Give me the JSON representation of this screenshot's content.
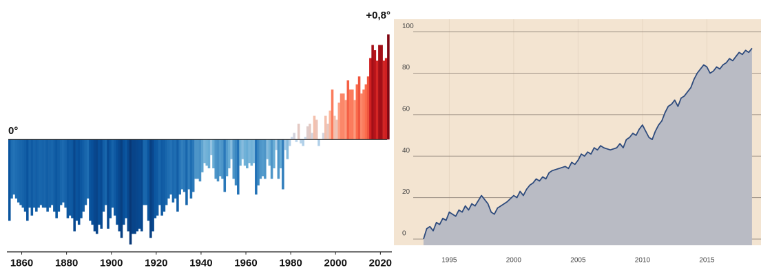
{
  "chart_data": [
    {
      "type": "bar",
      "x": [
        1854,
        1855,
        1856,
        1857,
        1858,
        1859,
        1860,
        1861,
        1862,
        1863,
        1864,
        1865,
        1866,
        1867,
        1868,
        1869,
        1870,
        1871,
        1872,
        1873,
        1874,
        1875,
        1876,
        1877,
        1878,
        1879,
        1880,
        1881,
        1882,
        1883,
        1884,
        1885,
        1886,
        1887,
        1888,
        1889,
        1890,
        1891,
        1892,
        1893,
        1894,
        1895,
        1896,
        1897,
        1898,
        1899,
        1900,
        1901,
        1902,
        1903,
        1904,
        1905,
        1906,
        1907,
        1908,
        1909,
        1910,
        1911,
        1912,
        1913,
        1914,
        1915,
        1916,
        1917,
        1918,
        1919,
        1920,
        1921,
        1922,
        1923,
        1924,
        1925,
        1926,
        1927,
        1928,
        1929,
        1930,
        1931,
        1932,
        1933,
        1934,
        1935,
        1936,
        1937,
        1938,
        1939,
        1940,
        1941,
        1942,
        1943,
        1944,
        1945,
        1946,
        1947,
        1948,
        1949,
        1950,
        1951,
        1952,
        1953,
        1954,
        1955,
        1956,
        1957,
        1958,
        1959,
        1960,
        1961,
        1962,
        1963,
        1964,
        1965,
        1966,
        1967,
        1968,
        1969,
        1970,
        1971,
        1972,
        1973,
        1974,
        1975,
        1976,
        1977,
        1978,
        1979,
        1980,
        1981,
        1982,
        1983,
        1984,
        1985,
        1986,
        1987,
        1988,
        1989,
        1990,
        1991,
        1992,
        1993,
        1994,
        1995,
        1996,
        1997,
        1998,
        1999,
        2000,
        2001,
        2002,
        2003,
        2004,
        2005,
        2006,
        2007,
        2008,
        2009,
        2010,
        2011,
        2012,
        2013,
        2014,
        2015,
        2016,
        2017,
        2018,
        2019,
        2020,
        2021,
        2022,
        2023
      ],
      "values": [
        -0.62,
        -0.45,
        -0.42,
        -0.45,
        -0.48,
        -0.5,
        -0.52,
        -0.55,
        -0.62,
        -0.52,
        -0.58,
        -0.52,
        -0.55,
        -0.52,
        -0.5,
        -0.52,
        -0.52,
        -0.55,
        -0.52,
        -0.5,
        -0.55,
        -0.6,
        -0.55,
        -0.5,
        -0.48,
        -0.52,
        -0.6,
        -0.58,
        -0.6,
        -0.7,
        -0.62,
        -0.65,
        -0.6,
        -0.55,
        -0.5,
        -0.45,
        -0.62,
        -0.65,
        -0.7,
        -0.72,
        -0.65,
        -0.68,
        -0.55,
        -0.5,
        -0.68,
        -0.6,
        -0.52,
        -0.58,
        -0.65,
        -0.7,
        -0.75,
        -0.65,
        -0.6,
        -0.7,
        -0.8,
        -0.72,
        -0.72,
        -0.7,
        -0.68,
        -0.7,
        -0.5,
        -0.5,
        -0.62,
        -0.75,
        -0.7,
        -0.6,
        -0.58,
        -0.5,
        -0.58,
        -0.55,
        -0.5,
        -0.45,
        -0.42,
        -0.48,
        -0.45,
        -0.55,
        -0.42,
        -0.38,
        -0.4,
        -0.5,
        -0.38,
        -0.45,
        -0.4,
        -0.3,
        -0.3,
        -0.32,
        -0.25,
        -0.18,
        -0.2,
        -0.22,
        -0.12,
        -0.22,
        -0.3,
        -0.32,
        -0.28,
        -0.3,
        -0.4,
        -0.28,
        -0.22,
        -0.15,
        -0.3,
        -0.35,
        -0.42,
        -0.2,
        -0.15,
        -0.2,
        -0.22,
        -0.18,
        -0.2,
        -0.18,
        -0.42,
        -0.35,
        -0.3,
        -0.28,
        -0.3,
        -0.15,
        -0.2,
        -0.3,
        -0.22,
        -0.08,
        -0.3,
        -0.22,
        -0.38,
        -0.08,
        -0.15,
        -0.05,
        0.02,
        0.05,
        -0.02,
        0.12,
        -0.03,
        -0.05,
        0.02,
        0.1,
        0.12,
        0.05,
        0.18,
        0.15,
        -0.05,
        0.0,
        0.05,
        0.18,
        0.12,
        0.22,
        0.38,
        0.18,
        0.15,
        0.28,
        0.35,
        0.35,
        0.3,
        0.45,
        0.38,
        0.38,
        0.3,
        0.42,
        0.48,
        0.35,
        0.38,
        0.42,
        0.48,
        0.62,
        0.72,
        0.68,
        0.6,
        0.72,
        0.72,
        0.6,
        0.62,
        0.8
      ],
      "colors": [
        "#08306b",
        "#08519c",
        "#2171b5",
        "#6baed6",
        "#c6dbef",
        "#fcbba1",
        "#fb6a4a",
        "#cb181d",
        "#67000d"
      ],
      "xlim": [
        1854,
        2024.5
      ],
      "xticks": [
        1860,
        1880,
        1900,
        1920,
        1940,
        1960,
        1980,
        2000,
        2020
      ],
      "ylim": [
        -0.82,
        0.85
      ],
      "yticks": [
        {
          "value": 0,
          "label": "0°"
        },
        {
          "value": 0.8,
          "label": "+0,8°"
        }
      ]
    },
    {
      "type": "area",
      "x": [
        1993.0,
        1993.25,
        1993.5,
        1993.75,
        1994,
        1994.25,
        1994.5,
        1994.75,
        1995,
        1995.25,
        1995.5,
        1995.75,
        1996,
        1996.25,
        1996.5,
        1996.75,
        1997,
        1997.5,
        1997.75,
        1998,
        1998.25,
        1998.5,
        1998.75,
        1999,
        1999.5,
        2000,
        2000.25,
        2000.5,
        2000.75,
        2001,
        2001.25,
        2001.5,
        2001.75,
        2002,
        2002.25,
        2002.5,
        2002.75,
        2003,
        2003.5,
        2004,
        2004.25,
        2004.5,
        2004.75,
        2005,
        2005.25,
        2005.5,
        2005.75,
        2006,
        2006.25,
        2006.5,
        2006.75,
        2007,
        2007.5,
        2008,
        2008.25,
        2008.5,
        2008.75,
        2009,
        2009.25,
        2009.5,
        2009.75,
        2010,
        2010.25,
        2010.5,
        2010.75,
        2011,
        2011.25,
        2011.5,
        2011.75,
        2012,
        2012.25,
        2012.5,
        2012.75,
        2013,
        2013.25,
        2013.5,
        2013.75,
        2014,
        2014.25,
        2014.5,
        2014.75,
        2015,
        2015.25,
        2015.5,
        2015.75,
        2016,
        2016.25,
        2016.5,
        2016.75,
        2017,
        2017.25,
        2017.5,
        2017.75,
        2018,
        2018.25,
        2018.5
      ],
      "values": [
        0,
        5,
        6,
        4,
        8,
        7,
        10,
        9,
        13,
        12,
        11,
        14,
        13,
        16,
        14,
        17,
        16,
        21,
        19,
        17,
        13,
        12,
        15,
        16,
        18,
        21,
        20,
        23,
        21,
        24,
        26,
        27,
        29,
        28,
        30,
        29,
        32,
        33,
        34,
        35,
        34,
        37,
        36,
        38,
        41,
        40,
        42,
        41,
        44,
        43,
        45,
        44,
        43,
        44,
        46,
        44,
        48,
        49,
        51,
        50,
        53,
        55,
        52,
        49,
        48,
        52,
        55,
        57,
        61,
        64,
        65,
        67,
        64,
        68,
        69,
        71,
        73,
        77,
        80,
        82,
        84,
        83,
        80,
        81,
        83,
        82,
        84,
        85,
        87,
        86,
        88,
        90,
        89,
        91,
        90,
        92
      ],
      "color": "#2d4a7c",
      "fill": "#b9bbc4",
      "background": "#f3e4d1",
      "xlim": [
        1992.2,
        2019.2
      ],
      "xticks": [
        1995,
        2000,
        2005,
        2010,
        2015
      ],
      "ylim": [
        -3,
        106
      ],
      "yticks": [
        0,
        20,
        40,
        60,
        80,
        100
      ],
      "grid": true
    }
  ]
}
